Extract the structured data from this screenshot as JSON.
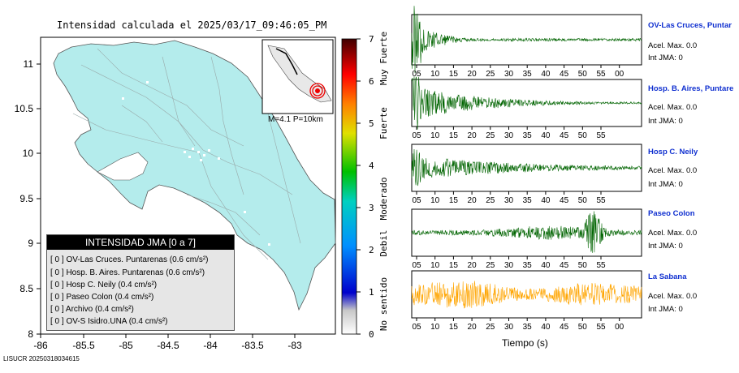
{
  "map": {
    "title": "Intensidad calculada el 2025/03/17_09:46:05_PM",
    "footer_id": "LISUCR 20250318034615",
    "x_ticks": [
      "-86",
      "-85.5",
      "-85",
      "-84.5",
      "-84",
      "-83.5",
      "-83"
    ],
    "y_ticks": [
      "11",
      "10.5",
      "10",
      "9.5",
      "9",
      "8.5",
      "8"
    ],
    "land_color": "#b4ecec",
    "inset_caption": "M=4.1 P=10km"
  },
  "colorbar": {
    "ticks": [
      "7",
      "6",
      "5",
      "4",
      "3",
      "2",
      "1",
      "0"
    ],
    "labels": [
      "Muy Fuerte",
      "Fuerte",
      "Moderado",
      "Debil",
      "No sentido"
    ]
  },
  "legend": {
    "title": "INTENSIDAD JMA [0 a 7]",
    "rows": [
      {
        "text": "[ 0 ]  OV-Las Cruces. Puntarenas (0.6 cm/s²)"
      },
      {
        "text": "[ 0 ]  Hosp. B. Aires. Puntarenas (0.6 cm/s²)"
      },
      {
        "text": "[ 0 ]  Hosp C. Neily (0.4 cm/s²)"
      },
      {
        "text": "[ 0 ]  Paseo Colon (0.4 cm/s²)"
      },
      {
        "text": "[ 0 ]  Archivo (0.4 cm/s²)"
      },
      {
        "text": "[ 0 ]  OV-S Isidro.UNA (0.4 cm/s²)"
      }
    ]
  },
  "stations": [
    {
      "name": "OV-Las Cruces, Puntar",
      "acel": "Acel. Max. 0.0",
      "int": "Int JMA: 0",
      "ticks": [
        "05",
        "10",
        "15",
        "20",
        "25",
        "30",
        "35",
        "40",
        "45",
        "50",
        "55",
        "00"
      ],
      "color": "#006400"
    },
    {
      "name": "Hosp. B. Aires, Puntare",
      "acel": "Acel. Max. 0.0",
      "int": "Int JMA: 0",
      "ticks": [
        "05",
        "10",
        "15",
        "20",
        "25",
        "30",
        "35",
        "40",
        "45",
        "50",
        "55"
      ],
      "color": "#006400"
    },
    {
      "name": "Hosp C. Neily",
      "acel": "Acel. Max. 0.0",
      "int": "Int JMA: 0",
      "ticks": [
        "05",
        "10",
        "15",
        "20",
        "25",
        "30",
        "35",
        "40",
        "45",
        "50",
        "55"
      ],
      "color": "#006400"
    },
    {
      "name": "Paseo Colon",
      "acel": "Acel. Max. 0.0",
      "int": "Int JMA: 0",
      "ticks": [
        "05",
        "10",
        "15",
        "20",
        "25",
        "30",
        "35",
        "40",
        "45",
        "50",
        "55"
      ],
      "color": "#006400"
    },
    {
      "name": "La Sabana",
      "acel": "Acel. Max. 0.0",
      "int": "Int JMA: 0",
      "ticks": [
        "05",
        "10",
        "15",
        "20",
        "25",
        "30",
        "35",
        "40",
        "45",
        "50",
        "55",
        "00"
      ],
      "color": "#ffa500"
    }
  ],
  "x_axis_title": "Tiempo (s)"
}
